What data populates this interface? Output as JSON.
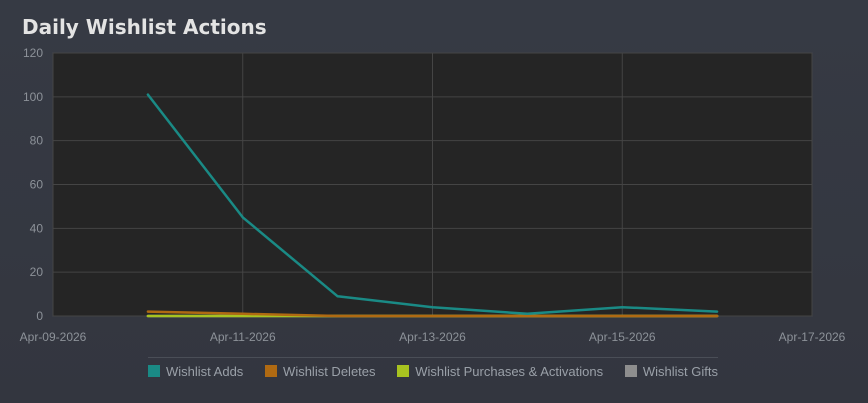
{
  "chart_data": {
    "type": "line",
    "title": "Daily Wishlist Actions",
    "x": [
      "Apr-10-2026",
      "Apr-11-2026",
      "Apr-12-2026",
      "Apr-13-2026",
      "Apr-14-2026",
      "Apr-15-2026",
      "Apr-16-2026"
    ],
    "xticks": [
      "Apr-09-2026",
      "Apr-11-2026",
      "Apr-13-2026",
      "Apr-15-2026",
      "Apr-17-2026"
    ],
    "xlim": [
      "Apr-09-2026",
      "Apr-17-2026"
    ],
    "ylim": [
      0,
      120
    ],
    "yticks": [
      0,
      20,
      40,
      60,
      80,
      100,
      120
    ],
    "grid": true,
    "legend_position": "bottom",
    "series": [
      {
        "name": "Wishlist Adds",
        "color": "#1a8a85",
        "values": [
          101,
          45,
          9,
          4,
          1,
          4,
          2
        ]
      },
      {
        "name": "Wishlist Deletes",
        "color": "#b06a12",
        "values": [
          2,
          1,
          0,
          0,
          0,
          0,
          0
        ]
      },
      {
        "name": "Wishlist Purchases & Activations",
        "color": "#a8c320",
        "values": [
          0,
          0,
          0,
          0,
          0,
          0,
          0
        ]
      },
      {
        "name": "Wishlist Gifts",
        "color": "#8e8e8e",
        "values": [
          0,
          0,
          0,
          0,
          0,
          0,
          0
        ]
      }
    ]
  }
}
